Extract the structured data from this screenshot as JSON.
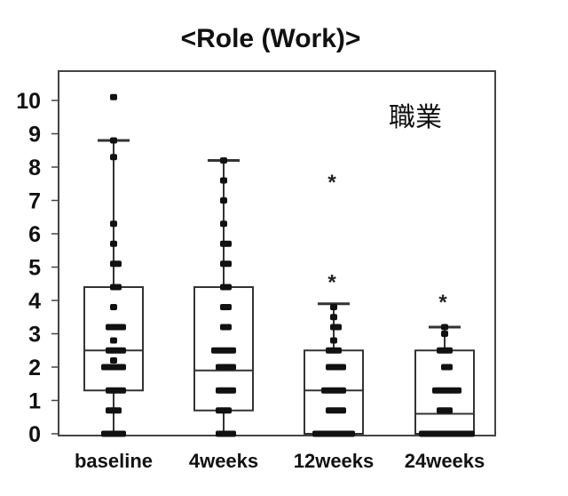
{
  "chart_data": {
    "type": "box",
    "title": "<Role (Work)>",
    "annotation": "職業",
    "ylim": [
      0,
      10
    ],
    "yticks": [
      "0",
      "1",
      "2",
      "3",
      "4",
      "5",
      "6",
      "7",
      "8",
      "9",
      "10"
    ],
    "categories": [
      "baseline",
      "4weeks",
      "12weeks",
      "24weeks"
    ],
    "boxes": [
      {
        "q1": 1.3,
        "median": 2.5,
        "q3": 4.4,
        "whisker_low": 0,
        "whisker_high": 8.8,
        "outliers": []
      },
      {
        "q1": 0.7,
        "median": 1.9,
        "q3": 4.4,
        "whisker_low": 0,
        "whisker_high": 8.2,
        "outliers": []
      },
      {
        "q1": 0,
        "median": 1.3,
        "q3": 2.5,
        "whisker_low": 0,
        "whisker_high": 3.9,
        "outliers": [
          4.6,
          7.6
        ]
      },
      {
        "q1": 0,
        "median": 0.6,
        "q3": 2.5,
        "whisker_low": 0,
        "whisker_high": 3.2,
        "outliers": [
          4.0
        ]
      }
    ],
    "points": [
      [
        10.1,
        8.8,
        8.3,
        6.3,
        5.7,
        5.1,
        5.1,
        4.4,
        4.4,
        3.8,
        3.2,
        3.2,
        3.2,
        3.2,
        2.8,
        2.5,
        2.5,
        2.5,
        2.5,
        2.2,
        2.0,
        2.0,
        2.0,
        2.0,
        2.0,
        1.3,
        1.3,
        1.3,
        1.3,
        0.7,
        0.7,
        0.7,
        0,
        0,
        0,
        0,
        0
      ],
      [
        8.2,
        7.6,
        7.0,
        6.3,
        5.7,
        5.7,
        5.1,
        5.1,
        4.4,
        4.4,
        3.8,
        3.8,
        3.2,
        3.2,
        2.5,
        2.5,
        2.5,
        2.5,
        2.5,
        2.0,
        2.0,
        2.0,
        2.0,
        1.3,
        1.3,
        1.3,
        1.3,
        0.7,
        0.7,
        0.7,
        0,
        0,
        0,
        0
      ],
      [
        3.8,
        3.5,
        3.2,
        3.2,
        2.8,
        2.5,
        2.5,
        2.5,
        2.0,
        2.0,
        2.0,
        2.0,
        1.3,
        1.3,
        1.3,
        1.3,
        1.3,
        0.7,
        0.7,
        0.7,
        0.7,
        0,
        0,
        0,
        0,
        0,
        0,
        0,
        0,
        0
      ],
      [
        3.2,
        3.0,
        2.5,
        2.5,
        2.5,
        2.0,
        2.0,
        1.3,
        1.3,
        1.3,
        1.3,
        1.3,
        1.3,
        0.7,
        0.7,
        0.7,
        0,
        0,
        0,
        0,
        0,
        0,
        0,
        0,
        0,
        0,
        0,
        0
      ]
    ],
    "point_color": "#111111",
    "box_stroke_color": "#333333"
  }
}
